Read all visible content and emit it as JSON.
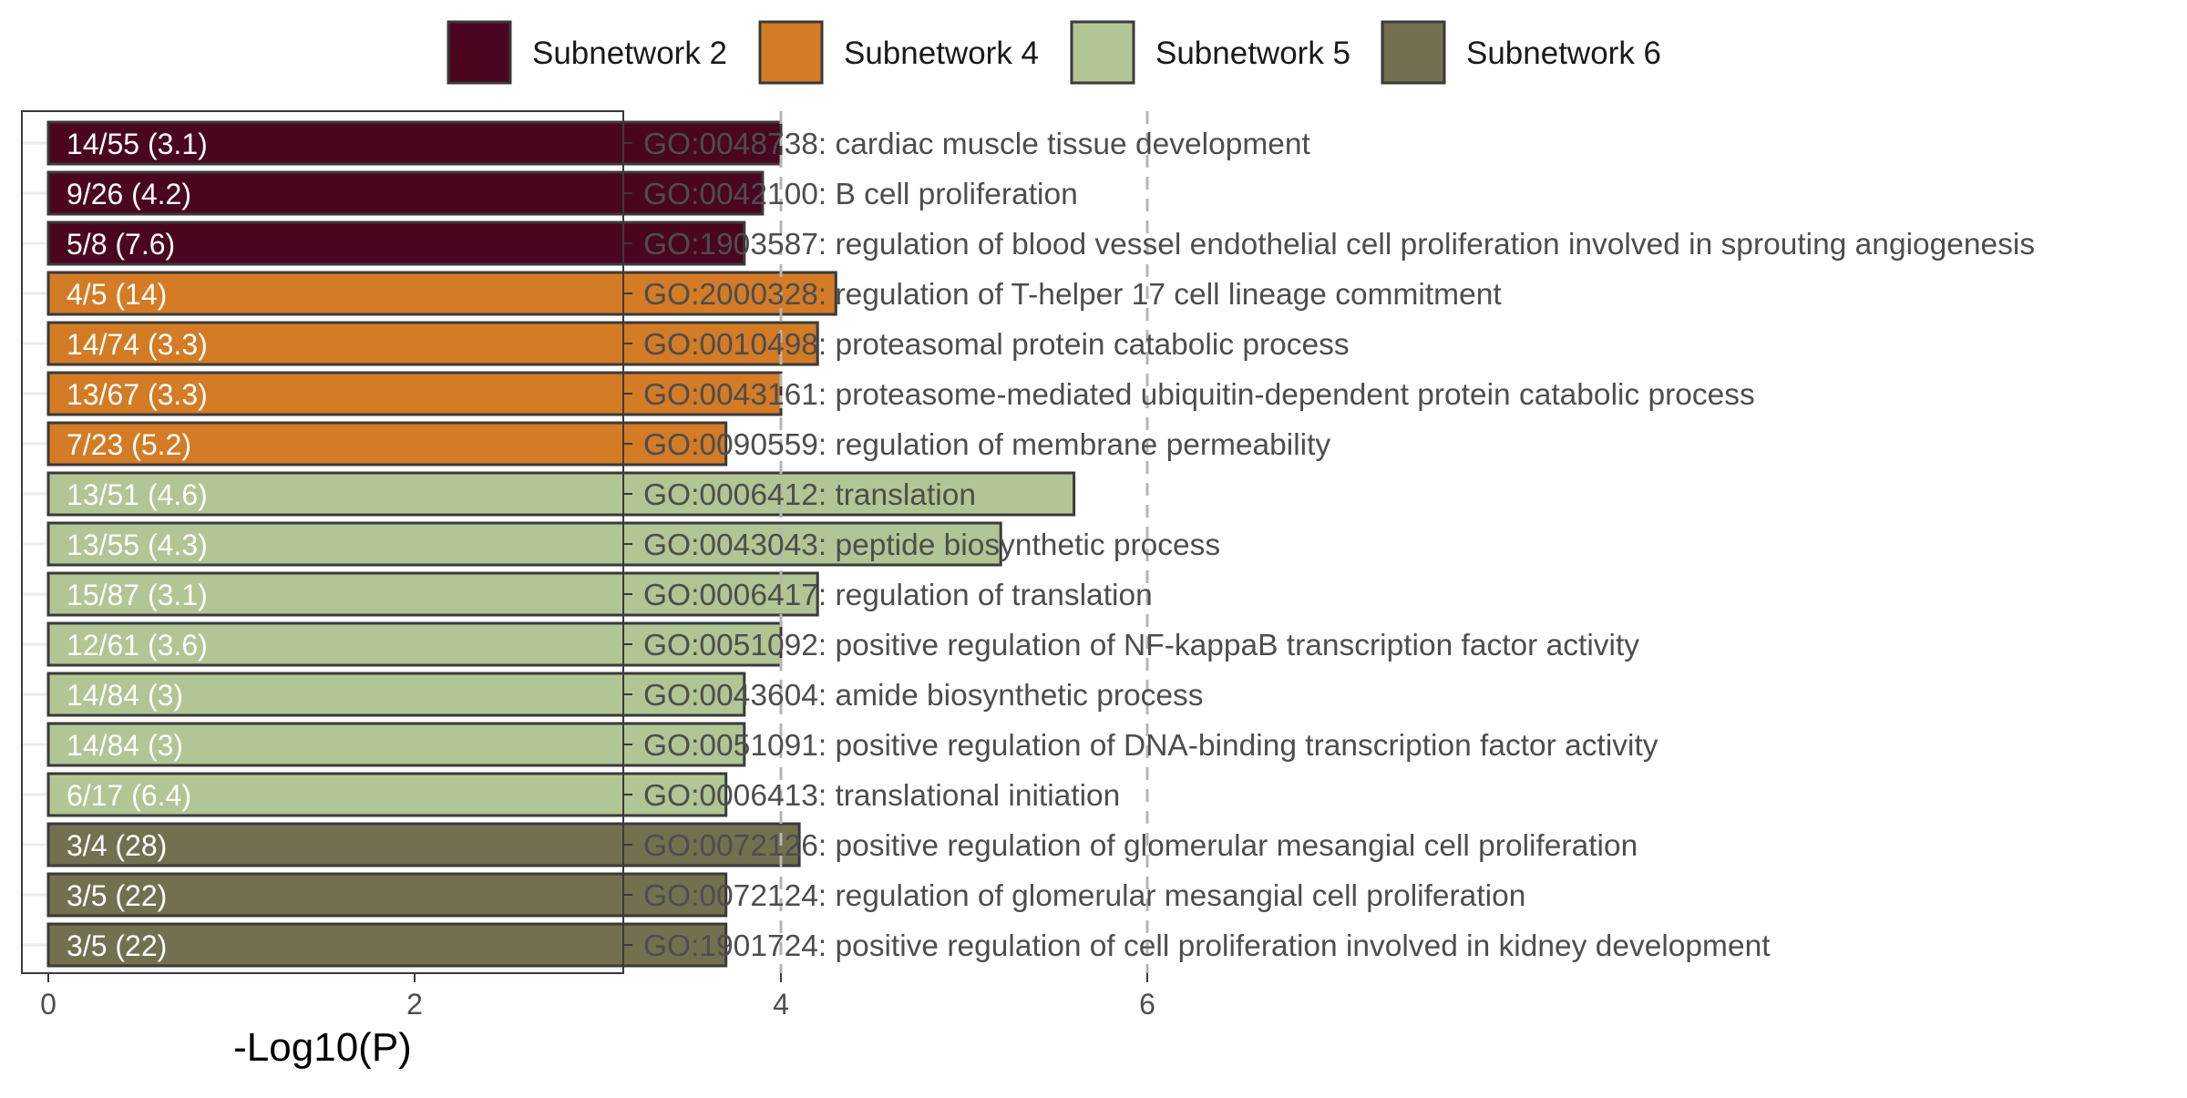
{
  "chart_data": {
    "type": "bar",
    "orientation": "horizontal",
    "title": "",
    "xlabel": "-Log10(P)",
    "ylabel": "",
    "xlim": [
      0,
      6.3
    ],
    "xticks": [
      0,
      2,
      4,
      6
    ],
    "reference_lines": [
      4,
      6
    ],
    "grid": "y-major",
    "legend_position": "top",
    "series": [
      {
        "name": "Subnetwork 2",
        "color": "#4A0520"
      },
      {
        "name": "Subnetwork 4",
        "color": "#D47B25"
      },
      {
        "name": "Subnetwork 5",
        "color": "#B2C594"
      },
      {
        "name": "Subnetwork 6",
        "color": "#73704F"
      }
    ],
    "bars": [
      {
        "category": "GO:0048738: cardiac muscle tissue development",
        "value": 4.0,
        "label": "14/55 (3.1)",
        "series": 0
      },
      {
        "category": "GO:0042100: B cell proliferation",
        "value": 3.9,
        "label": "9/26 (4.2)",
        "series": 0
      },
      {
        "category": "GO:1903587: regulation of blood vessel endothelial cell proliferation involved in sprouting angiogenesis",
        "value": 3.8,
        "label": "5/8 (7.6)",
        "series": 0
      },
      {
        "category": "GO:2000328: regulation of T-helper 17 cell lineage commitment",
        "value": 4.3,
        "label": "4/5 (14)",
        "series": 1
      },
      {
        "category": "GO:0010498: proteasomal protein catabolic process",
        "value": 4.2,
        "label": "14/74 (3.3)",
        "series": 1
      },
      {
        "category": "GO:0043161: proteasome-mediated ubiquitin-dependent protein catabolic process",
        "value": 4.0,
        "label": "13/67 (3.3)",
        "series": 1
      },
      {
        "category": "GO:0090559: regulation of membrane permeability",
        "value": 3.7,
        "label": "7/23 (5.2)",
        "series": 1
      },
      {
        "category": "GO:0006412: translation",
        "value": 5.6,
        "label": "13/51 (4.6)",
        "series": 2
      },
      {
        "category": "GO:0043043: peptide biosynthetic process",
        "value": 5.2,
        "label": "13/55 (4.3)",
        "series": 2
      },
      {
        "category": "GO:0006417: regulation of translation",
        "value": 4.2,
        "label": "15/87 (3.1)",
        "series": 2
      },
      {
        "category": "GO:0051092: positive regulation of NF-kappaB transcription factor activity",
        "value": 4.0,
        "label": "12/61 (3.6)",
        "series": 2
      },
      {
        "category": "GO:0043604: amide biosynthetic process",
        "value": 3.8,
        "label": "14/84 (3)",
        "series": 2
      },
      {
        "category": "GO:0051091: positive regulation of DNA-binding transcription factor activity",
        "value": 3.8,
        "label": "14/84 (3)",
        "series": 2
      },
      {
        "category": "GO:0006413: translational initiation",
        "value": 3.7,
        "label": "6/17 (6.4)",
        "series": 2
      },
      {
        "category": "GO:0072126: positive regulation of glomerular mesangial cell proliferation",
        "value": 4.1,
        "label": "3/4 (28)",
        "series": 3
      },
      {
        "category": "GO:0072124: regulation of glomerular mesangial cell proliferation",
        "value": 3.7,
        "label": "3/5 (22)",
        "series": 3
      },
      {
        "category": "GO:1901724: positive regulation of cell proliferation involved in kidney development",
        "value": 3.7,
        "label": "3/5 (22)",
        "series": 3
      }
    ]
  }
}
